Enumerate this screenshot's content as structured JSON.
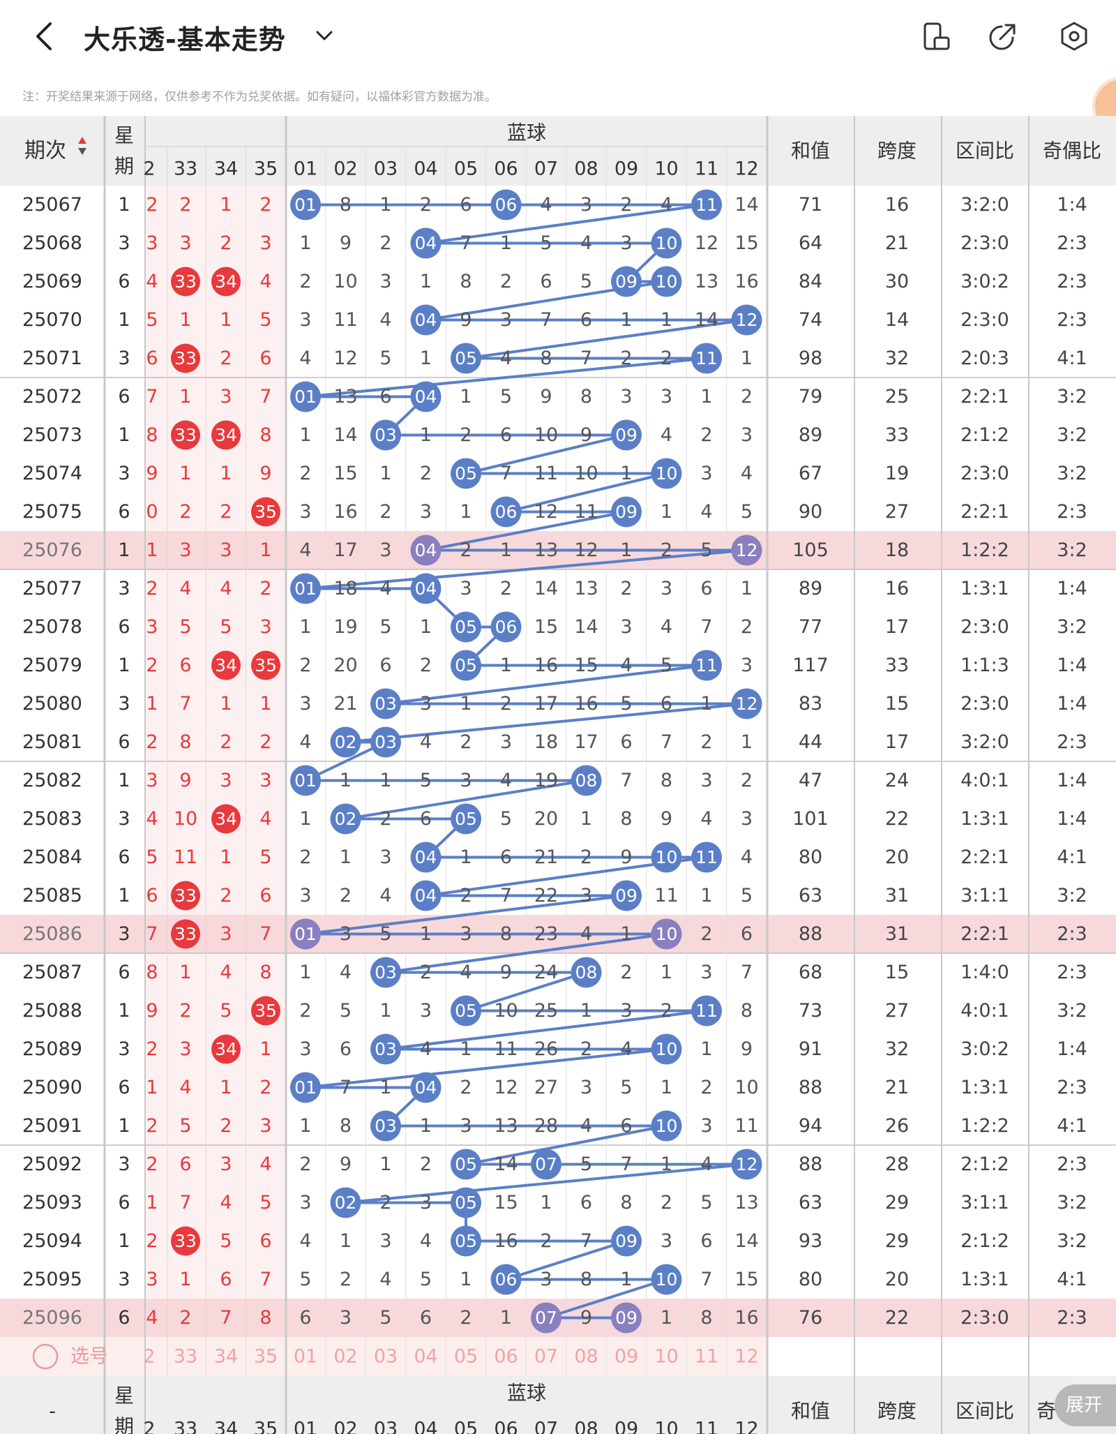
{
  "header": {
    "title": "大乐透-基本走势",
    "back_icon": "chevron-left-icon",
    "dropdown_icon": "chevron-down-icon",
    "icons": [
      "phone-rotate-icon",
      "share-icon",
      "settings-icon"
    ]
  },
  "note": "注：开奖结果来源于网络，仅供参考不作为兑奖依据。如有疑问，以福体彩官方数据为准。",
  "table": {
    "col_period": "期次",
    "col_week": "星期",
    "blue_title": "蓝球",
    "col_sum": "和值",
    "col_span": "跨度",
    "col_ratio": "区间比",
    "col_odd": "奇偶比",
    "red_headers": [
      "2",
      "33",
      "34",
      "35"
    ],
    "blue_headers": [
      "01",
      "02",
      "03",
      "04",
      "05",
      "06",
      "07",
      "08",
      "09",
      "10",
      "11",
      "12"
    ],
    "rows": [
      {
        "p": "25067",
        "w": "1",
        "r": [
          "2",
          "2",
          "1",
          "2"
        ],
        "b": [
          "01",
          "8",
          "1",
          "2",
          "6",
          "06",
          "4",
          "3",
          "2",
          "4",
          "11",
          "14"
        ],
        "s": "71",
        "sp": "16",
        "q": "3:2:0",
        "o": "1:4"
      },
      {
        "p": "25068",
        "w": "3",
        "r": [
          "3",
          "3",
          "2",
          "3"
        ],
        "b": [
          "1",
          "9",
          "2",
          "04",
          "7",
          "1",
          "5",
          "4",
          "3",
          "10",
          "12",
          "15"
        ],
        "s": "64",
        "sp": "21",
        "q": "2:3:0",
        "o": "2:3"
      },
      {
        "p": "25069",
        "w": "6",
        "r": [
          "4",
          "33",
          "34",
          "4"
        ],
        "b": [
          "2",
          "10",
          "3",
          "1",
          "8",
          "2",
          "6",
          "5",
          "09",
          "10",
          "13",
          "16"
        ],
        "s": "84",
        "sp": "30",
        "q": "3:0:2",
        "o": "2:3"
      },
      {
        "p": "25070",
        "w": "1",
        "r": [
          "5",
          "1",
          "1",
          "5"
        ],
        "b": [
          "3",
          "11",
          "4",
          "04",
          "9",
          "3",
          "7",
          "6",
          "1",
          "1",
          "14",
          "12"
        ],
        "s": "74",
        "sp": "14",
        "q": "2:3:0",
        "o": "2:3"
      },
      {
        "p": "25071",
        "w": "3",
        "r": [
          "6",
          "33",
          "2",
          "6"
        ],
        "b": [
          "4",
          "12",
          "5",
          "1",
          "05",
          "4",
          "8",
          "7",
          "2",
          "2",
          "11",
          "1"
        ],
        "s": "98",
        "sp": "32",
        "q": "2:0:3",
        "o": "4:1"
      },
      {
        "p": "25072",
        "w": "6",
        "r": [
          "7",
          "1",
          "3",
          "7"
        ],
        "b": [
          "01",
          "13",
          "6",
          "04",
          "1",
          "5",
          "9",
          "8",
          "3",
          "3",
          "1",
          "2"
        ],
        "s": "79",
        "sp": "25",
        "q": "2:2:1",
        "o": "3:2"
      },
      {
        "p": "25073",
        "w": "1",
        "r": [
          "8",
          "33",
          "34",
          "8"
        ],
        "b": [
          "1",
          "14",
          "03",
          "1",
          "2",
          "6",
          "10",
          "9",
          "09",
          "4",
          "2",
          "3"
        ],
        "s": "89",
        "sp": "33",
        "q": "2:1:2",
        "o": "3:2"
      },
      {
        "p": "25074",
        "w": "3",
        "r": [
          "9",
          "1",
          "1",
          "9"
        ],
        "b": [
          "2",
          "15",
          "1",
          "2",
          "05",
          "7",
          "11",
          "10",
          "1",
          "10",
          "3",
          "4"
        ],
        "s": "67",
        "sp": "19",
        "q": "2:3:0",
        "o": "3:2"
      },
      {
        "p": "25075",
        "w": "6",
        "r": [
          "0",
          "2",
          "2",
          "35"
        ],
        "b": [
          "3",
          "16",
          "2",
          "3",
          "1",
          "06",
          "12",
          "11",
          "09",
          "1",
          "4",
          "5"
        ],
        "s": "90",
        "sp": "27",
        "q": "2:2:1",
        "o": "2:3"
      },
      {
        "p": "25076",
        "w": "1",
        "r": [
          "1",
          "3",
          "3",
          "1"
        ],
        "b": [
          "4",
          "17",
          "3",
          "04",
          "2",
          "1",
          "13",
          "12",
          "1",
          "2",
          "5",
          "12"
        ],
        "s": "105",
        "sp": "18",
        "q": "1:2:2",
        "o": "3:2",
        "hl": true
      },
      {
        "p": "25077",
        "w": "3",
        "r": [
          "2",
          "4",
          "4",
          "2"
        ],
        "b": [
          "01",
          "18",
          "4",
          "04",
          "3",
          "2",
          "14",
          "13",
          "2",
          "3",
          "6",
          "1"
        ],
        "s": "89",
        "sp": "16",
        "q": "1:3:1",
        "o": "1:4"
      },
      {
        "p": "25078",
        "w": "6",
        "r": [
          "3",
          "5",
          "5",
          "3"
        ],
        "b": [
          "1",
          "19",
          "5",
          "1",
          "05",
          "06",
          "15",
          "14",
          "3",
          "4",
          "7",
          "2"
        ],
        "s": "77",
        "sp": "17",
        "q": "2:3:0",
        "o": "3:2"
      },
      {
        "p": "25079",
        "w": "1",
        "r": [
          "2",
          "6",
          "34",
          "35"
        ],
        "b": [
          "2",
          "20",
          "6",
          "2",
          "05",
          "1",
          "16",
          "15",
          "4",
          "5",
          "11",
          "3"
        ],
        "s": "117",
        "sp": "33",
        "q": "1:1:3",
        "o": "1:4"
      },
      {
        "p": "25080",
        "w": "3",
        "r": [
          "1",
          "7",
          "1",
          "1"
        ],
        "b": [
          "3",
          "21",
          "03",
          "3",
          "1",
          "2",
          "17",
          "16",
          "5",
          "6",
          "1",
          "12"
        ],
        "s": "83",
        "sp": "15",
        "q": "2:3:0",
        "o": "1:4"
      },
      {
        "p": "25081",
        "w": "6",
        "r": [
          "2",
          "8",
          "2",
          "2"
        ],
        "b": [
          "4",
          "02",
          "03",
          "4",
          "2",
          "3",
          "18",
          "17",
          "6",
          "7",
          "2",
          "1"
        ],
        "s": "44",
        "sp": "17",
        "q": "3:2:0",
        "o": "2:3"
      },
      {
        "p": "25082",
        "w": "1",
        "r": [
          "3",
          "9",
          "3",
          "3"
        ],
        "b": [
          "01",
          "1",
          "1",
          "5",
          "3",
          "4",
          "19",
          "08",
          "7",
          "8",
          "3",
          "2"
        ],
        "s": "47",
        "sp": "24",
        "q": "4:0:1",
        "o": "1:4"
      },
      {
        "p": "25083",
        "w": "3",
        "r": [
          "4",
          "10",
          "34",
          "4"
        ],
        "b": [
          "1",
          "02",
          "2",
          "6",
          "05",
          "5",
          "20",
          "1",
          "8",
          "9",
          "4",
          "3"
        ],
        "s": "101",
        "sp": "22",
        "q": "1:3:1",
        "o": "1:4"
      },
      {
        "p": "25084",
        "w": "6",
        "r": [
          "5",
          "11",
          "1",
          "5"
        ],
        "b": [
          "2",
          "1",
          "3",
          "04",
          "1",
          "6",
          "21",
          "2",
          "9",
          "10",
          "11",
          "4"
        ],
        "s": "80",
        "sp": "20",
        "q": "2:2:1",
        "o": "4:1"
      },
      {
        "p": "25085",
        "w": "1",
        "r": [
          "6",
          "33",
          "2",
          "6"
        ],
        "b": [
          "3",
          "2",
          "4",
          "04",
          "2",
          "7",
          "22",
          "3",
          "09",
          "11",
          "1",
          "5"
        ],
        "s": "63",
        "sp": "31",
        "q": "3:1:1",
        "o": "3:2"
      },
      {
        "p": "25086",
        "w": "3",
        "r": [
          "7",
          "33",
          "3",
          "7"
        ],
        "b": [
          "01",
          "3",
          "5",
          "1",
          "3",
          "8",
          "23",
          "4",
          "1",
          "10",
          "2",
          "6"
        ],
        "s": "88",
        "sp": "31",
        "q": "2:2:1",
        "o": "2:3",
        "hl": true
      },
      {
        "p": "25087",
        "w": "6",
        "r": [
          "8",
          "1",
          "4",
          "8"
        ],
        "b": [
          "1",
          "4",
          "03",
          "2",
          "4",
          "9",
          "24",
          "08",
          "2",
          "1",
          "3",
          "7"
        ],
        "s": "68",
        "sp": "15",
        "q": "1:4:0",
        "o": "2:3"
      },
      {
        "p": "25088",
        "w": "1",
        "r": [
          "9",
          "2",
          "5",
          "35"
        ],
        "b": [
          "2",
          "5",
          "1",
          "3",
          "05",
          "10",
          "25",
          "1",
          "3",
          "2",
          "11",
          "8"
        ],
        "s": "73",
        "sp": "27",
        "q": "4:0:1",
        "o": "3:2"
      },
      {
        "p": "25089",
        "w": "3",
        "r": [
          "2",
          "3",
          "34",
          "1"
        ],
        "b": [
          "3",
          "6",
          "03",
          "4",
          "1",
          "11",
          "26",
          "2",
          "4",
          "10",
          "1",
          "9"
        ],
        "s": "91",
        "sp": "32",
        "q": "3:0:2",
        "o": "1:4"
      },
      {
        "p": "25090",
        "w": "6",
        "r": [
          "1",
          "4",
          "1",
          "2"
        ],
        "b": [
          "01",
          "7",
          "1",
          "04",
          "2",
          "12",
          "27",
          "3",
          "5",
          "1",
          "2",
          "10"
        ],
        "s": "88",
        "sp": "21",
        "q": "1:3:1",
        "o": "2:3"
      },
      {
        "p": "25091",
        "w": "1",
        "r": [
          "2",
          "5",
          "2",
          "3"
        ],
        "b": [
          "1",
          "8",
          "03",
          "1",
          "3",
          "13",
          "28",
          "4",
          "6",
          "10",
          "3",
          "11"
        ],
        "s": "94",
        "sp": "26",
        "q": "1:2:2",
        "o": "4:1"
      },
      {
        "p": "25092",
        "w": "3",
        "r": [
          "2",
          "6",
          "3",
          "4"
        ],
        "b": [
          "2",
          "9",
          "1",
          "2",
          "05",
          "14",
          "07",
          "5",
          "7",
          "1",
          "4",
          "12"
        ],
        "s": "88",
        "sp": "28",
        "q": "2:1:2",
        "o": "2:3"
      },
      {
        "p": "25093",
        "w": "6",
        "r": [
          "1",
          "7",
          "4",
          "5"
        ],
        "b": [
          "3",
          "02",
          "2",
          "3",
          "05",
          "15",
          "1",
          "6",
          "8",
          "2",
          "5",
          "13"
        ],
        "s": "63",
        "sp": "29",
        "q": "3:1:1",
        "o": "3:2"
      },
      {
        "p": "25094",
        "w": "1",
        "r": [
          "2",
          "33",
          "5",
          "6"
        ],
        "b": [
          "4",
          "1",
          "3",
          "4",
          "05",
          "16",
          "2",
          "7",
          "09",
          "3",
          "6",
          "14"
        ],
        "s": "93",
        "sp": "29",
        "q": "2:1:2",
        "o": "3:2"
      },
      {
        "p": "25095",
        "w": "3",
        "r": [
          "3",
          "1",
          "6",
          "7"
        ],
        "b": [
          "5",
          "2",
          "4",
          "5",
          "1",
          "06",
          "3",
          "8",
          "1",
          "10",
          "7",
          "15"
        ],
        "s": "80",
        "sp": "20",
        "q": "1:3:1",
        "o": "4:1"
      },
      {
        "p": "25096",
        "w": "6",
        "r": [
          "4",
          "2",
          "7",
          "8"
        ],
        "b": [
          "6",
          "3",
          "5",
          "6",
          "2",
          "1",
          "07",
          "9",
          "09",
          "1",
          "8",
          "16"
        ],
        "s": "76",
        "sp": "22",
        "q": "2:3:0",
        "o": "2:3",
        "hl": true
      }
    ],
    "picker": {
      "label": "选号",
      "red": [
        "2",
        "33",
        "34",
        "35"
      ],
      "blue": [
        "01",
        "02",
        "03",
        "04",
        "05",
        "06",
        "07",
        "08",
        "09",
        "10",
        "11",
        "12"
      ]
    },
    "footer": {
      "period": "-",
      "col_week": "星期",
      "blue_title": "蓝球",
      "col_sum": "和值",
      "col_span": "跨度",
      "col_ratio": "区间比",
      "col_odd": "奇"
    }
  },
  "expand_label": "展开",
  "colors": {
    "red_ball": "#e8393c",
    "blue_ball": "#5b7fc6",
    "blue_line": "#5b7fc6",
    "highlight_row": "#f7d9dc",
    "header_bg": "#eeeeee",
    "red_text": "#e8393c"
  }
}
